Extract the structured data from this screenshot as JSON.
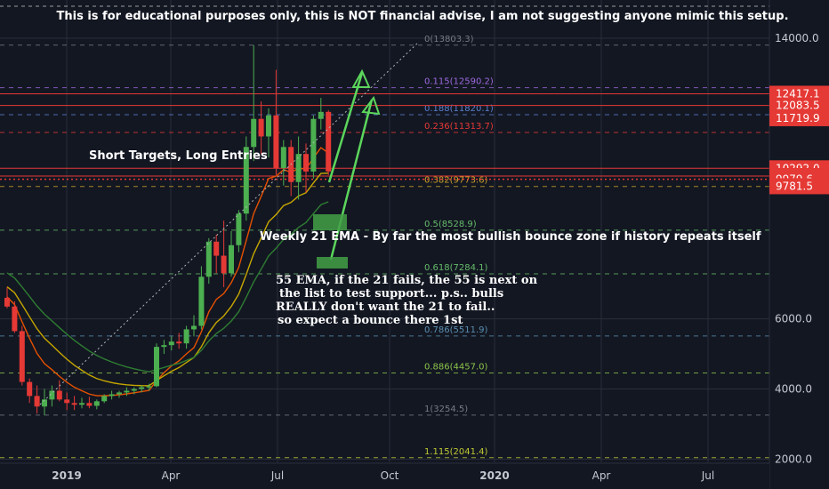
{
  "disclaimer": "This is for educational purposes only, this is NOT financial advise, I am not suggesting anyone mimic this setup.",
  "annotations": {
    "short_targets": "Short Targets, Long Entries",
    "ema21": "Weekly 21 EMA - By far the most bullish bounce zone if history repeats itself",
    "ema55_lines": [
      "55 EMA, if the 21 fails, the 55 is next on",
      " the list to test support... p.s.. bulls",
      "REALLY don't want the 21 to fail..",
      "so expect a bounce there 1st"
    ]
  },
  "colors": {
    "background": "#131722",
    "up": "#4caf50",
    "down": "#e53935",
    "price_line": "#e53935",
    "arrow": "#5cd65c",
    "zone": "#43a047",
    "ema21": "#e65100",
    "ema55": "#c6a700",
    "ema_green": "#2e7d32"
  },
  "chart_data": {
    "type": "candlestick",
    "title": "",
    "x_ticks": [
      "2019",
      "Apr",
      "Jul",
      "Oct",
      "2020",
      "Apr",
      "Jul"
    ],
    "y_ticks": [
      "14000.0",
      "6000.0",
      "4000.0",
      "2000.0"
    ],
    "ylim": [
      1700,
      15500
    ],
    "price_labels": [
      {
        "label": "12417.1",
        "value": 12417.1
      },
      {
        "label": "12083.5",
        "value": 12083.5
      },
      {
        "label": "11719.9",
        "value": 11719.9
      },
      {
        "label": "10292.0",
        "value": 10292.0
      },
      {
        "label": "10071.0",
        "value": 10071.0
      },
      {
        "label": "10052.0",
        "value": 10052.0
      },
      {
        "label": "9979.6",
        "value": 9979.6
      },
      {
        "label": "9781.5",
        "value": 9781.5
      }
    ],
    "fib_levels": [
      {
        "label": "0(13803.3)",
        "value": 13803.3,
        "color": "#787b86"
      },
      {
        "label": "0.115(12590.2)",
        "value": 12590.2,
        "color": "#9c6ade"
      },
      {
        "label": "0.188(11820.1)",
        "value": 11820.1,
        "color": "#5b7fd1"
      },
      {
        "label": "0.236(11313.7)",
        "value": 11313.7,
        "color": "#e53935"
      },
      {
        "label": "0.382(9773.6)",
        "value": 9773.6,
        "color": "#c9a227"
      },
      {
        "label": "0.5(8528.9)",
        "value": 8528.9,
        "color": "#66bb6a"
      },
      {
        "label": "0.618(7284.1)",
        "value": 7284.1,
        "color": "#66bb6a"
      },
      {
        "label": "0.786(5511.9)",
        "value": 5511.9,
        "color": "#5b8fb0"
      },
      {
        "label": "0.886(4457.0)",
        "value": 4457.0,
        "color": "#8bc34a"
      },
      {
        "label": "1(3254.5)",
        "value": 3254.5,
        "color": "#787b86"
      },
      {
        "label": "1.115(2041.4)",
        "value": 2041.4,
        "color": "#c0ca33"
      }
    ],
    "candles": [
      {
        "o": 6600,
        "h": 6900,
        "l": 6300,
        "c": 6350
      },
      {
        "o": 6350,
        "h": 6500,
        "l": 5600,
        "c": 5650
      },
      {
        "o": 5650,
        "h": 5800,
        "l": 4100,
        "c": 4200
      },
      {
        "o": 4200,
        "h": 4300,
        "l": 3600,
        "c": 3800
      },
      {
        "o": 3800,
        "h": 4100,
        "l": 3300,
        "c": 3500
      },
      {
        "o": 3500,
        "h": 4000,
        "l": 3250,
        "c": 3700
      },
      {
        "o": 3700,
        "h": 4100,
        "l": 3500,
        "c": 3950
      },
      {
        "o": 3950,
        "h": 4250,
        "l": 3650,
        "c": 3700
      },
      {
        "o": 3700,
        "h": 3900,
        "l": 3400,
        "c": 3600
      },
      {
        "o": 3600,
        "h": 3800,
        "l": 3400,
        "c": 3550
      },
      {
        "o": 3550,
        "h": 3750,
        "l": 3450,
        "c": 3600
      },
      {
        "o": 3600,
        "h": 3780,
        "l": 3450,
        "c": 3520
      },
      {
        "o": 3520,
        "h": 3700,
        "l": 3420,
        "c": 3650
      },
      {
        "o": 3650,
        "h": 3850,
        "l": 3600,
        "c": 3800
      },
      {
        "o": 3800,
        "h": 3950,
        "l": 3700,
        "c": 3850
      },
      {
        "o": 3850,
        "h": 3950,
        "l": 3750,
        "c": 3900
      },
      {
        "o": 3900,
        "h": 4050,
        "l": 3800,
        "c": 3950
      },
      {
        "o": 3950,
        "h": 4050,
        "l": 3850,
        "c": 4000
      },
      {
        "o": 4000,
        "h": 4100,
        "l": 3900,
        "c": 4050
      },
      {
        "o": 4050,
        "h": 4150,
        "l": 3950,
        "c": 4080
      },
      {
        "o": 4080,
        "h": 5300,
        "l": 4050,
        "c": 5200
      },
      {
        "o": 5200,
        "h": 5400,
        "l": 5000,
        "c": 5250
      },
      {
        "o": 5250,
        "h": 5500,
        "l": 5100,
        "c": 5350
      },
      {
        "o": 5350,
        "h": 5600,
        "l": 5150,
        "c": 5300
      },
      {
        "o": 5300,
        "h": 5800,
        "l": 5150,
        "c": 5700
      },
      {
        "o": 5700,
        "h": 6100,
        "l": 5500,
        "c": 5800
      },
      {
        "o": 5800,
        "h": 7500,
        "l": 5700,
        "c": 7200
      },
      {
        "o": 7200,
        "h": 8300,
        "l": 7000,
        "c": 8200
      },
      {
        "o": 8200,
        "h": 8400,
        "l": 7300,
        "c": 7800
      },
      {
        "o": 7800,
        "h": 8800,
        "l": 6900,
        "c": 7300
      },
      {
        "o": 7300,
        "h": 8500,
        "l": 7200,
        "c": 8100
      },
      {
        "o": 8100,
        "h": 9100,
        "l": 7900,
        "c": 9000
      },
      {
        "o": 9000,
        "h": 11200,
        "l": 8800,
        "c": 10900
      },
      {
        "o": 10900,
        "h": 13800,
        "l": 10500,
        "c": 11700
      },
      {
        "o": 11700,
        "h": 12200,
        "l": 10700,
        "c": 11200
      },
      {
        "o": 11200,
        "h": 12000,
        "l": 10600,
        "c": 11800
      },
      {
        "o": 11800,
        "h": 13100,
        "l": 10100,
        "c": 10300
      },
      {
        "o": 10300,
        "h": 11100,
        "l": 9800,
        "c": 10900
      },
      {
        "o": 10900,
        "h": 11100,
        "l": 9500,
        "c": 9900
      },
      {
        "o": 9900,
        "h": 11200,
        "l": 9400,
        "c": 10700
      },
      {
        "o": 10700,
        "h": 11000,
        "l": 9600,
        "c": 10200
      },
      {
        "o": 10200,
        "h": 11800,
        "l": 10000,
        "c": 11700
      },
      {
        "o": 11700,
        "h": 12300,
        "l": 11400,
        "c": 11900
      },
      {
        "o": 11900,
        "h": 11950,
        "l": 10100,
        "c": 10200
      }
    ]
  }
}
